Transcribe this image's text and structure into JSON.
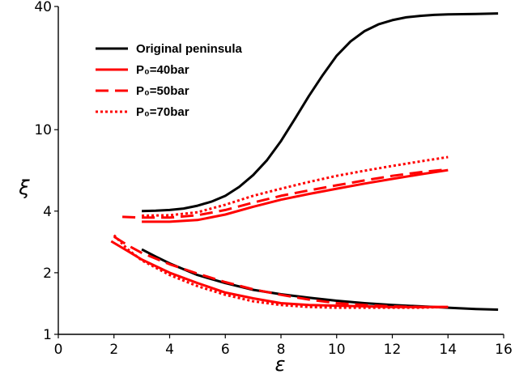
{
  "chart_data": {
    "type": "line",
    "xlabel": "ε",
    "ylabel": "ξ",
    "xlim": [
      0,
      16
    ],
    "ylim": [
      1,
      40
    ],
    "yscale": "log",
    "x_ticks": [
      "0",
      "2",
      "4",
      "6",
      "8",
      "10",
      "12",
      "14",
      "16"
    ],
    "x_tick_values": [
      0,
      2,
      4,
      6,
      8,
      10,
      12,
      14,
      16
    ],
    "y_ticks": [
      "1",
      "2",
      "4",
      "10",
      "40"
    ],
    "y_tick_values": [
      1,
      2,
      4,
      10,
      40
    ],
    "grid": false,
    "legend_position": "top-left",
    "series": [
      {
        "name": "Original peninsula",
        "color": "#000000",
        "style": "solid",
        "branches": [
          {
            "x": [
              3.0,
              3.5,
              4.0,
              4.5,
              5.0,
              5.5,
              6.0,
              6.5,
              7.0,
              7.5,
              8.0,
              8.5,
              9.0,
              9.5,
              10.0,
              10.5,
              11.0,
              11.5,
              12.0,
              12.5,
              13.0,
              13.5,
              14.0,
              15.0,
              15.8
            ],
            "y": [
              4.0,
              4.02,
              4.05,
              4.12,
              4.25,
              4.45,
              4.75,
              5.25,
              6.0,
              7.1,
              8.8,
              11.3,
              14.6,
              18.5,
              23.0,
              27.0,
              30.3,
              32.7,
              34.3,
              35.4,
              36.0,
              36.4,
              36.6,
              36.8,
              37.0
            ]
          },
          {
            "x": [
              3.0,
              3.5,
              4.0,
              5.0,
              6.0,
              7.0,
              8.0,
              9.0,
              10.0,
              11.0,
              12.0,
              13.0,
              14.0,
              15.0,
              15.8
            ],
            "y": [
              2.6,
              2.4,
              2.22,
              1.95,
              1.78,
              1.65,
              1.57,
              1.51,
              1.46,
              1.42,
              1.39,
              1.37,
              1.35,
              1.33,
              1.32
            ]
          }
        ]
      },
      {
        "name": "P₀=40bar",
        "color": "#ff0000",
        "style": "solid",
        "branches": [
          {
            "x": [
              3.0,
              4.0,
              5.0,
              6.0,
              7.0,
              8.0,
              9.0,
              10.0,
              11.0,
              12.0,
              13.0,
              14.0
            ],
            "y": [
              3.55,
              3.55,
              3.62,
              3.85,
              4.2,
              4.55,
              4.85,
              5.15,
              5.45,
              5.75,
              6.05,
              6.35
            ]
          },
          {
            "x": [
              1.9,
              2.5,
              3.0,
              4.0,
              5.0,
              6.0,
              7.0,
              8.0,
              9.0,
              10.0,
              11.0,
              12.0,
              13.0,
              14.0
            ],
            "y": [
              2.85,
              2.55,
              2.32,
              2.0,
              1.78,
              1.6,
              1.5,
              1.42,
              1.39,
              1.38,
              1.37,
              1.36,
              1.36,
              1.36
            ]
          }
        ]
      },
      {
        "name": "P₀=50bar",
        "color": "#ff0000",
        "style": "dashed",
        "branches": [
          {
            "x": [
              2.3,
              3.0,
              4.0,
              5.0,
              6.0,
              7.0,
              8.0,
              9.0,
              10.0,
              11.0,
              12.0,
              13.0,
              14.0
            ],
            "y": [
              3.75,
              3.72,
              3.72,
              3.82,
              4.05,
              4.4,
              4.75,
              5.05,
              5.35,
              5.65,
              5.95,
              6.2,
              6.4
            ]
          },
          {
            "x": [
              2.0,
              2.5,
              3.0,
              4.0,
              5.0,
              6.0,
              7.0,
              8.0,
              9.0,
              10.0,
              11.0,
              12.0,
              13.0,
              14.0
            ],
            "y": [
              3.0,
              2.72,
              2.5,
              2.2,
              1.98,
              1.8,
              1.66,
              1.56,
              1.48,
              1.42,
              1.39,
              1.37,
              1.36,
              1.36
            ]
          }
        ]
      },
      {
        "name": "P₀=70bar",
        "color": "#ff0000",
        "style": "dotted",
        "branches": [
          {
            "x": [
              3.0,
              4.0,
              5.0,
              6.0,
              7.0,
              8.0,
              9.0,
              10.0,
              11.0,
              12.0,
              13.0,
              14.0
            ],
            "y": [
              3.8,
              3.82,
              3.95,
              4.3,
              4.75,
              5.15,
              5.55,
              5.95,
              6.3,
              6.65,
              7.0,
              7.35
            ]
          },
          {
            "x": [
              2.0,
              2.5,
              3.0,
              4.0,
              5.0,
              6.0,
              7.0,
              8.0,
              9.0,
              10.0,
              11.0,
              12.0,
              13.0,
              14.0
            ],
            "y": [
              3.05,
              2.6,
              2.3,
              1.95,
              1.72,
              1.56,
              1.45,
              1.39,
              1.36,
              1.35,
              1.35,
              1.35,
              1.35,
              1.36
            ]
          }
        ]
      }
    ]
  }
}
